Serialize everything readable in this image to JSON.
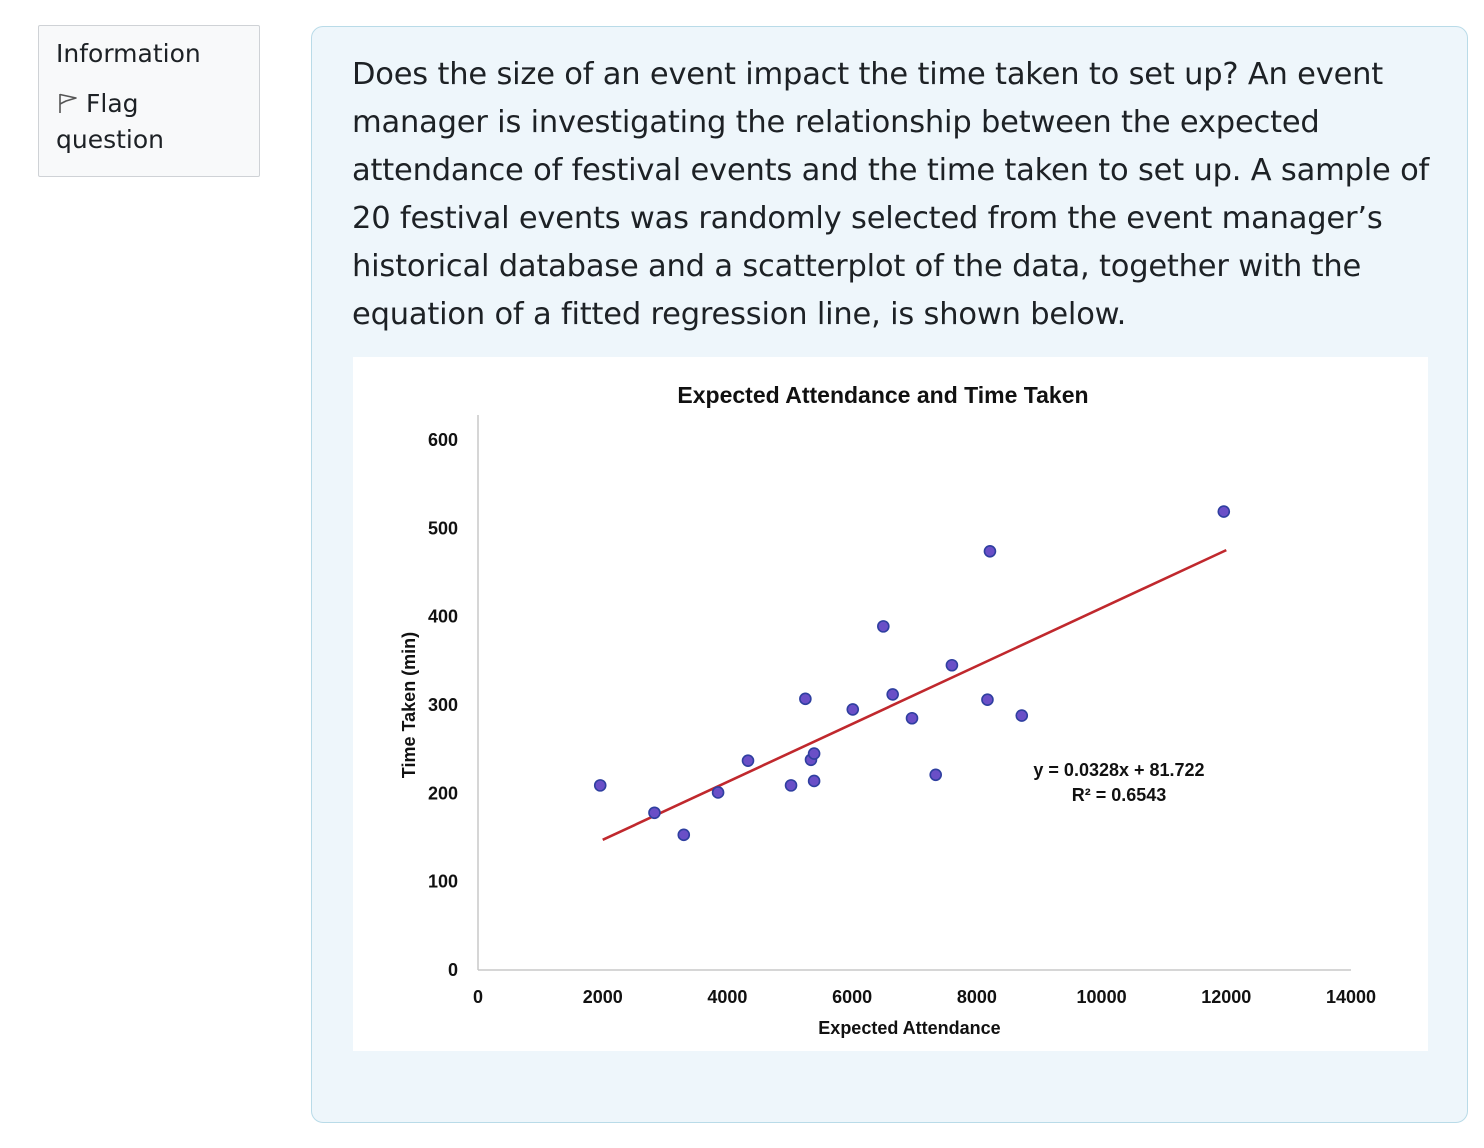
{
  "sidebar": {
    "info_title": "Information",
    "flag_label_line1": "Flag",
    "flag_label_line2": "question"
  },
  "question": {
    "text": "Does the size of an event impact the time taken to set up? An event manager is investigating the relationship between the expected attendance of festival events and the time taken to set up. A sample of 20 festival events was randomly selected from the event manager’s historical database and a scatterplot of the data, together with the equation of a fitted regression line, is shown below."
  },
  "colors": {
    "point_fill": "#6a4fc7",
    "point_stroke": "#2f3fa0",
    "trend_line": "#c0282d",
    "axis": "#c8c8c8"
  },
  "chart_data": {
    "type": "scatter",
    "title": "Expected Attendance and Time Taken",
    "xlabel": "Expected Attendance",
    "ylabel": "Time Taken (min)",
    "xlim": [
      0,
      14000
    ],
    "ylim": [
      0,
      600
    ],
    "x_ticks": [
      "0",
      "2000",
      "4000",
      "6000",
      "8000",
      "10000",
      "12000",
      "14000"
    ],
    "y_ticks": [
      "0",
      "100",
      "200",
      "300",
      "400",
      "500",
      "600"
    ],
    "points": [
      {
        "x": 1960,
        "y": 209
      },
      {
        "x": 2830,
        "y": 178
      },
      {
        "x": 3300,
        "y": 153
      },
      {
        "x": 3850,
        "y": 201
      },
      {
        "x": 4330,
        "y": 237
      },
      {
        "x": 5020,
        "y": 209
      },
      {
        "x": 5250,
        "y": 307
      },
      {
        "x": 5340,
        "y": 238
      },
      {
        "x": 5390,
        "y": 245
      },
      {
        "x": 5390,
        "y": 214
      },
      {
        "x": 6010,
        "y": 295
      },
      {
        "x": 6500,
        "y": 389
      },
      {
        "x": 6650,
        "y": 312
      },
      {
        "x": 6960,
        "y": 285
      },
      {
        "x": 7340,
        "y": 221
      },
      {
        "x": 7600,
        "y": 345
      },
      {
        "x": 8170,
        "y": 306
      },
      {
        "x": 8210,
        "y": 474
      },
      {
        "x": 8720,
        "y": 288
      },
      {
        "x": 11960,
        "y": 519
      }
    ],
    "trendline": {
      "slope": 0.0328,
      "intercept": 81.722,
      "x_start": 2000,
      "x_end": 12000
    },
    "equation": "y = 0.0328x + 81.722",
    "r_squared": "R² = 0.6543"
  }
}
